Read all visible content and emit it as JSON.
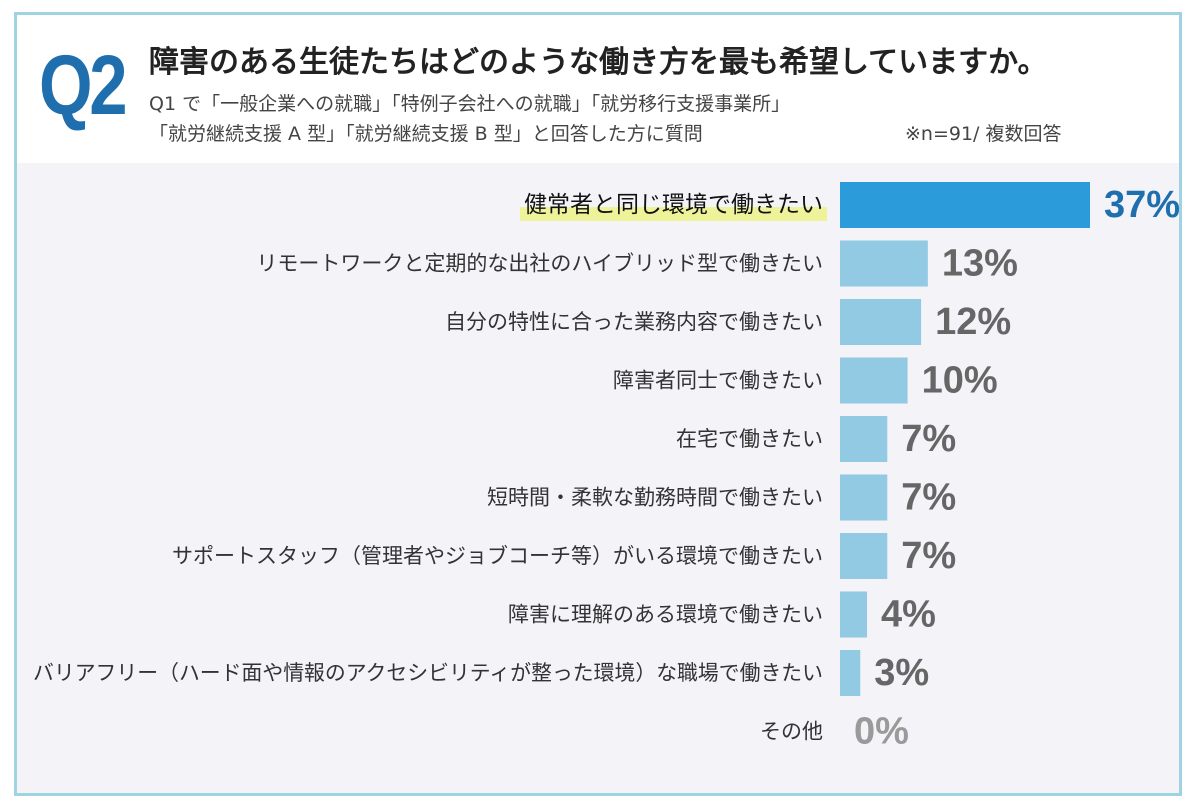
{
  "header": {
    "q_label": "Q2",
    "title": "障害のある生徒たちはどのような働き方を最も希望していますか。",
    "subtitle_line1": "Q1 で「一般企業への就職」「特例子会社への就職」「就労移行支援事業所」",
    "subtitle_line2": "「就労継続支援 A 型」「就労継続支援 B 型」と回答した方に質問",
    "note": "※n=91/ 複数回答"
  },
  "colors": {
    "accent": "#2b9bd9",
    "bar": "#92c9e3",
    "highlight": "#eef39a",
    "q_label": "#1f6fae"
  },
  "chart_data": {
    "type": "bar",
    "orientation": "horizontal",
    "categories": [
      "健常者と同じ環境で働きたい",
      "リモートワークと定期的な出社のハイブリッド型で働きたい",
      "自分の特性に合った業務内容で働きたい",
      "障害者同士で働きたい",
      "在宅で働きたい",
      "短時間・柔軟な勤務時間で働きたい",
      "サポートスタッフ（管理者やジョブコーチ等）がいる環境で働きたい",
      "障害に理解のある環境で働きたい",
      "バリアフリー（ハード面や情報のアクセシビリティが整った環境）な職場で働きたい",
      "その他"
    ],
    "values": [
      37,
      13,
      12,
      10,
      7,
      7,
      7,
      4,
      3,
      0
    ],
    "value_labels": [
      "37%",
      "13%",
      "12%",
      "10%",
      "7%",
      "7%",
      "7%",
      "4%",
      "3%",
      "0%"
    ],
    "unit": "%",
    "highlighted_index": 0,
    "grid": false
  }
}
